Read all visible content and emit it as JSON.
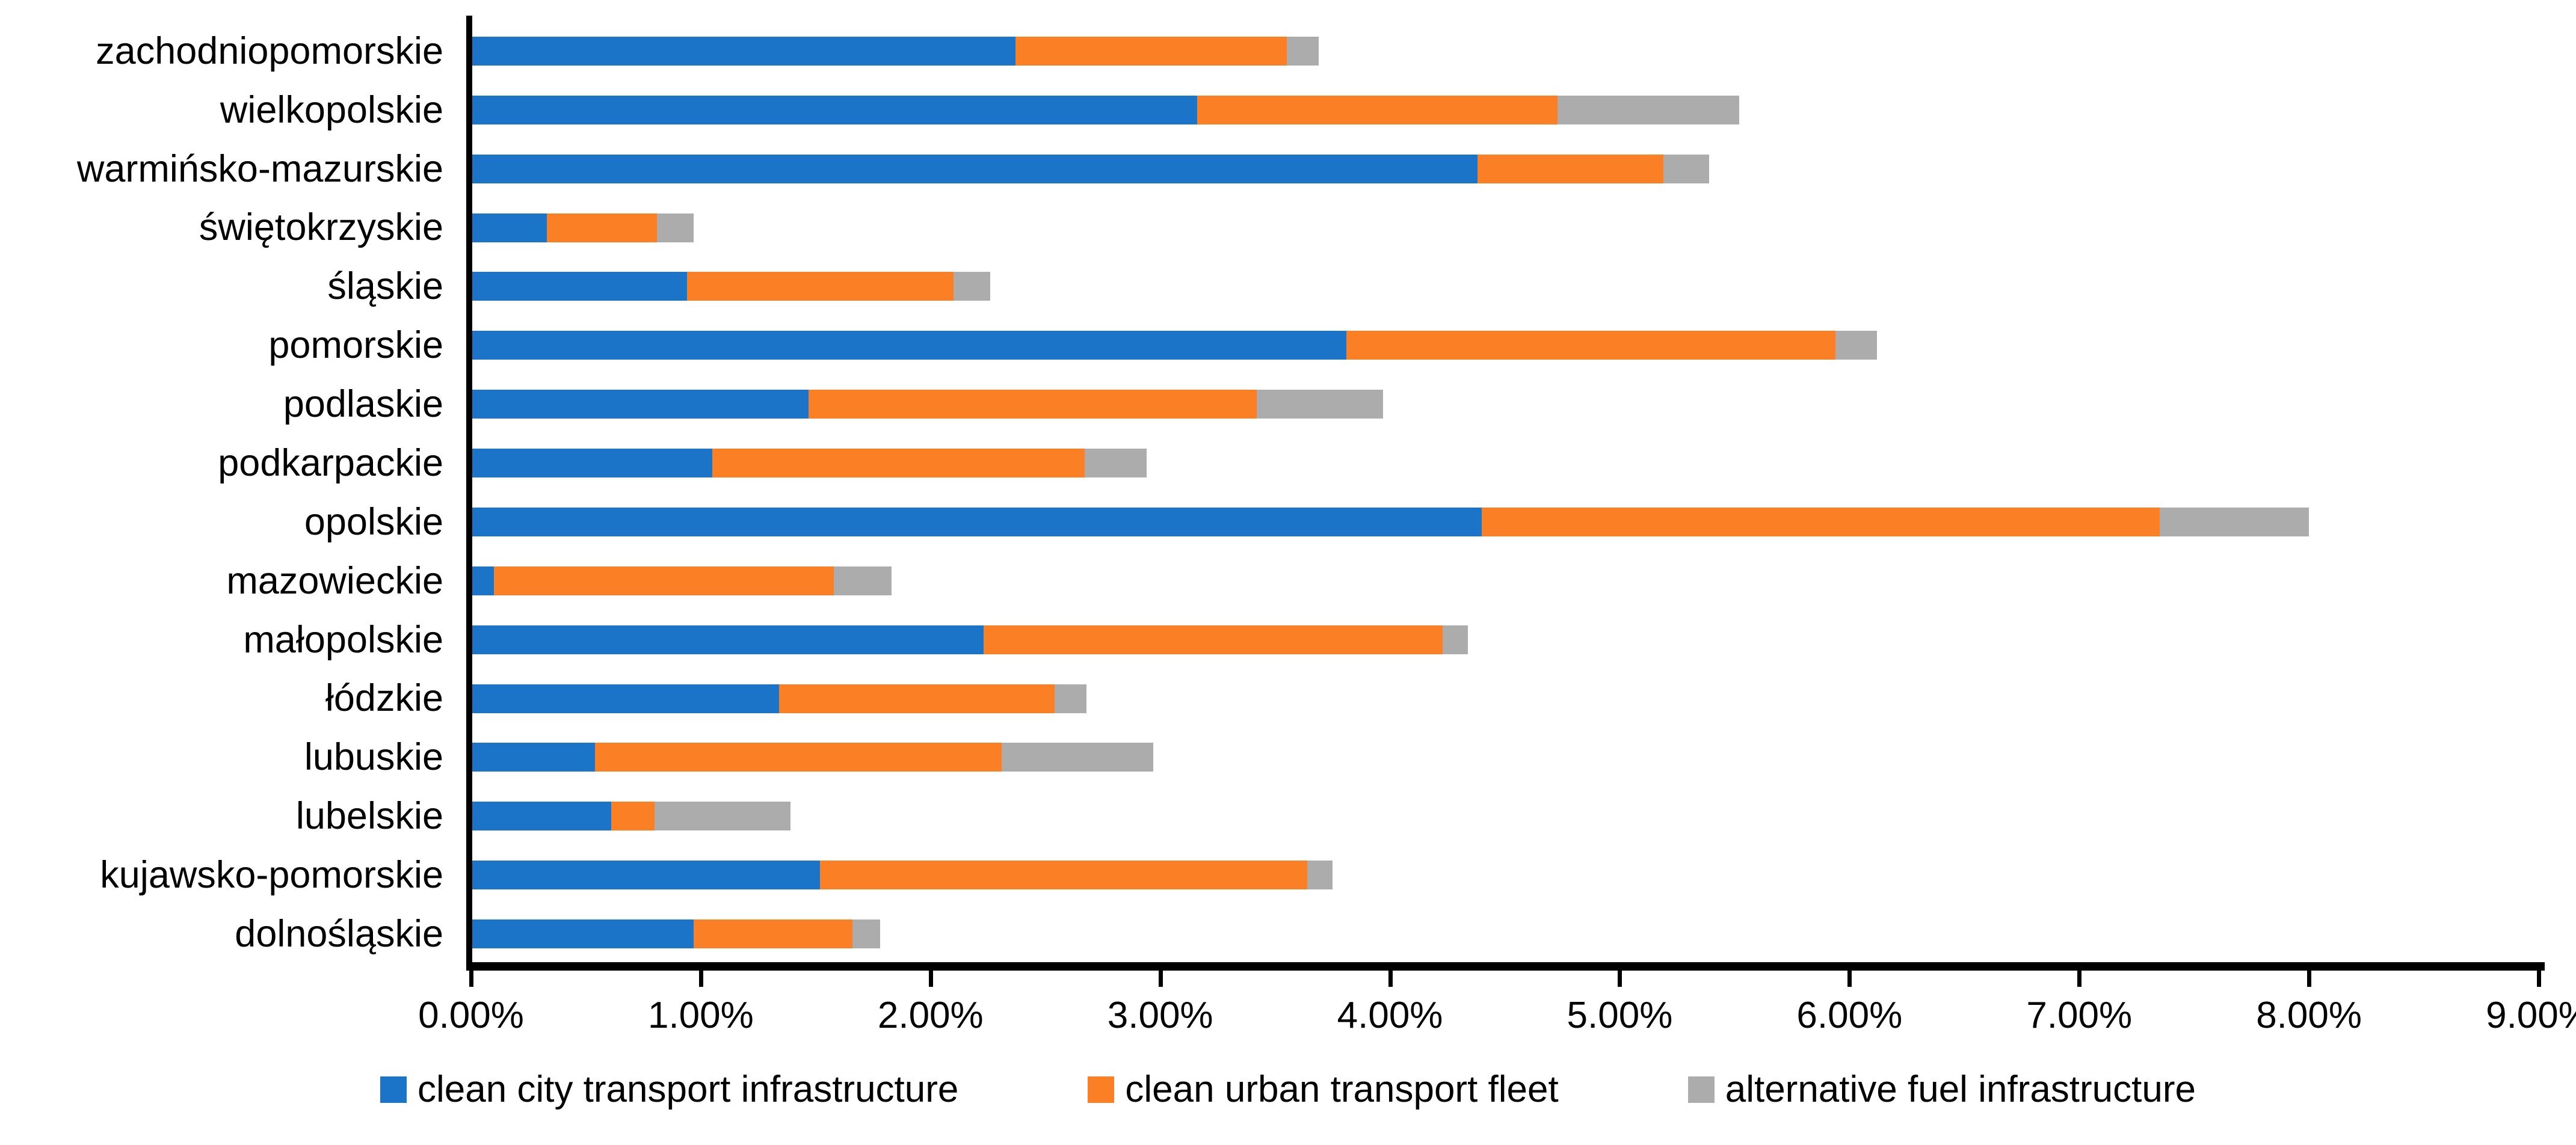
{
  "chart_data": {
    "type": "bar",
    "orientation": "horizontal",
    "stacked": true,
    "title": "",
    "xlabel": "",
    "ylabel": "",
    "grid": false,
    "legend_position": "bottom",
    "value_unit": "%",
    "xlim": [
      0,
      9
    ],
    "x_tick_labels": [
      "0.00%",
      "1.00%",
      "2.00%",
      "3.00%",
      "4.00%",
      "5.00%",
      "6.00%",
      "7.00%",
      "8.00%",
      "9.00%"
    ],
    "categories": [
      "zachodniopomorskie",
      "wielkopolskie",
      "warmińsko-mazurskie",
      "świętokrzyskie",
      "śląskie",
      "pomorskie",
      "podlaskie",
      "podkarpackie",
      "opolskie",
      "mazowieckie",
      "małopolskie",
      "łódzkie",
      "lubuskie",
      "lubelskie",
      "kujawsko-pomorskie",
      "dolnośląskie"
    ],
    "series": [
      {
        "name": "clean city transport infrastructure",
        "color": "#1B74C8",
        "values": [
          2.37,
          3.16,
          4.38,
          0.33,
          0.94,
          3.81,
          1.47,
          1.05,
          4.4,
          0.1,
          2.23,
          1.34,
          0.54,
          0.61,
          1.52,
          0.97
        ]
      },
      {
        "name": "clean urban transport fleet",
        "color": "#FB8025",
        "values": [
          1.18,
          1.57,
          0.81,
          0.48,
          1.16,
          2.13,
          1.95,
          1.62,
          2.95,
          1.48,
          2.0,
          1.2,
          1.77,
          0.19,
          2.12,
          0.69
        ]
      },
      {
        "name": "alternative fuel infrastructure",
        "color": "#ACACAC",
        "values": [
          0.14,
          0.79,
          0.2,
          0.16,
          0.16,
          0.18,
          0.55,
          0.27,
          0.65,
          0.25,
          0.11,
          0.14,
          0.66,
          0.59,
          0.11,
          0.12
        ]
      }
    ],
    "axis_color": "#000000",
    "text_color": "#000000"
  }
}
